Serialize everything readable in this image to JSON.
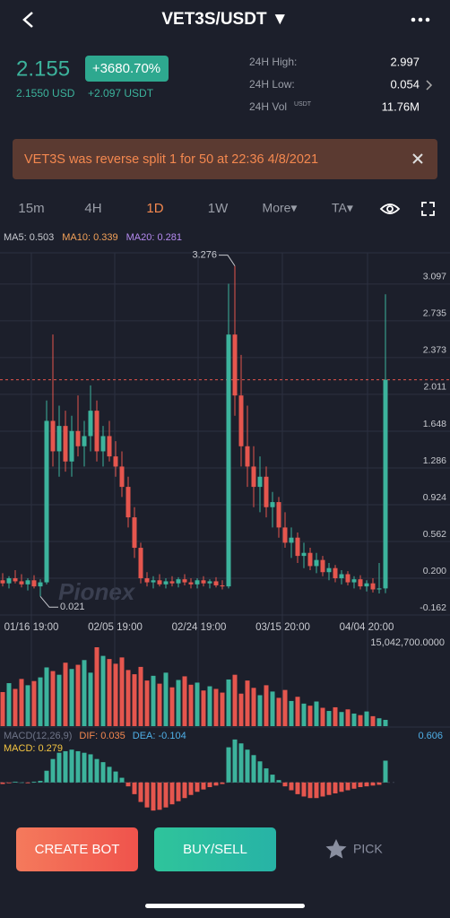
{
  "header": {
    "title": "VET3S/USDT ▼"
  },
  "price": {
    "last": "2.155",
    "change": "+3680.70%",
    "usd": "2.1550 USD",
    "delta": "+2.097 USDT"
  },
  "stats": [
    {
      "label": "24H High:",
      "value": "2.997"
    },
    {
      "label": "24H Low:",
      "value": "0.054"
    },
    {
      "label": "24H Vol",
      "sup": "USDT",
      "value": "11.76M"
    }
  ],
  "banner": "VET3S was reverse split 1 for 50 at 22:36 4/8/2021",
  "tabs": [
    "15m",
    "4H",
    "1D",
    "1W",
    "More▾",
    "TA▾"
  ],
  "ma": [
    "MA5: 0.503",
    "MA10: 0.339",
    "MA20: 0.281"
  ],
  "chart_data": {
    "type": "candlestick",
    "up_color": "#3cb39c",
    "down_color": "#e5564e",
    "ylim": [
      -0.197,
      3.405
    ],
    "yticks": [
      {
        "value": 3.097,
        "label": "3.097"
      },
      2.735,
      2.373,
      2.011,
      1.648,
      1.286,
      0.924,
      0.562,
      {
        "value": 0.2,
        "label": "0.200"
      },
      -0.162
    ],
    "x_labels": [
      "01/16 19:00",
      "02/05 19:00",
      "02/24 19:00",
      "03/15 20:00",
      "04/04 20:00"
    ],
    "annotations": [
      "3.276",
      "0.021"
    ],
    "grid": true,
    "candles": [
      [
        0.18,
        0.25,
        0.12,
        0.15
      ],
      [
        0.15,
        0.22,
        0.1,
        0.2
      ],
      [
        0.2,
        0.28,
        0.15,
        0.17
      ],
      [
        0.17,
        0.24,
        0.11,
        0.14
      ],
      [
        0.14,
        0.2,
        0.08,
        0.18
      ],
      [
        0.18,
        0.23,
        0.1,
        0.12
      ],
      [
        0.12,
        0.19,
        0.021,
        0.16
      ],
      [
        0.16,
        1.95,
        0.14,
        1.75
      ],
      [
        1.75,
        2.6,
        1.3,
        1.45
      ],
      [
        1.45,
        1.9,
        1.2,
        1.7
      ],
      [
        1.7,
        1.85,
        1.25,
        1.35
      ],
      [
        1.35,
        1.8,
        1.2,
        1.65
      ],
      [
        1.65,
        2.0,
        1.4,
        1.5
      ],
      [
        1.5,
        1.75,
        1.3,
        1.6
      ],
      [
        1.6,
        2.1,
        1.45,
        1.85
      ],
      [
        1.85,
        1.95,
        1.35,
        1.45
      ],
      [
        1.45,
        1.7,
        1.3,
        1.6
      ],
      [
        1.6,
        1.75,
        1.35,
        1.4
      ],
      [
        1.4,
        1.55,
        1.2,
        1.3
      ],
      [
        1.3,
        1.45,
        1.0,
        1.1
      ],
      [
        1.1,
        1.2,
        0.7,
        0.8
      ],
      [
        0.8,
        0.9,
        0.4,
        0.5
      ],
      [
        0.5,
        0.55,
        0.15,
        0.2
      ],
      [
        0.2,
        0.26,
        0.12,
        0.16
      ],
      [
        0.16,
        0.22,
        0.1,
        0.18
      ],
      [
        0.18,
        0.24,
        0.12,
        0.14
      ],
      [
        0.14,
        0.2,
        0.1,
        0.17
      ],
      [
        0.17,
        0.22,
        0.12,
        0.15
      ],
      [
        0.15,
        0.21,
        0.11,
        0.19
      ],
      [
        0.19,
        0.24,
        0.13,
        0.16
      ],
      [
        0.16,
        0.2,
        0.1,
        0.14
      ],
      [
        0.14,
        0.2,
        0.1,
        0.18
      ],
      [
        0.18,
        0.22,
        0.12,
        0.15
      ],
      [
        0.15,
        0.19,
        0.1,
        0.17
      ],
      [
        0.17,
        0.21,
        0.11,
        0.13
      ],
      [
        0.13,
        0.18,
        0.09,
        0.12
      ],
      [
        0.12,
        3.1,
        0.1,
        2.6
      ],
      [
        2.6,
        3.276,
        1.8,
        2.0
      ],
      [
        2.0,
        2.4,
        1.3,
        1.5
      ],
      [
        1.5,
        1.9,
        1.1,
        1.3
      ],
      [
        1.3,
        1.5,
        0.9,
        1.1
      ],
      [
        1.1,
        1.4,
        0.85,
        1.2
      ],
      [
        1.2,
        1.3,
        0.8,
        0.9
      ],
      [
        0.9,
        1.05,
        0.7,
        0.95
      ],
      [
        0.95,
        1.0,
        0.6,
        0.7
      ],
      [
        0.7,
        0.85,
        0.5,
        0.55
      ],
      [
        0.55,
        0.7,
        0.4,
        0.6
      ],
      [
        0.6,
        0.65,
        0.35,
        0.42
      ],
      [
        0.42,
        0.55,
        0.3,
        0.45
      ],
      [
        0.45,
        0.5,
        0.28,
        0.32
      ],
      [
        0.32,
        0.45,
        0.25,
        0.38
      ],
      [
        0.38,
        0.42,
        0.22,
        0.26
      ],
      [
        0.26,
        0.35,
        0.18,
        0.3
      ],
      [
        0.3,
        0.33,
        0.16,
        0.2
      ],
      [
        0.2,
        0.28,
        0.14,
        0.24
      ],
      [
        0.24,
        0.27,
        0.13,
        0.16
      ],
      [
        0.16,
        0.22,
        0.1,
        0.19
      ],
      [
        0.19,
        0.23,
        0.09,
        0.12
      ],
      [
        0.12,
        0.18,
        0.07,
        0.15
      ],
      [
        0.15,
        0.2,
        0.06,
        0.09
      ],
      [
        0.09,
        0.35,
        0.05,
        0.1
      ],
      [
        0.1,
        2.997,
        0.054,
        2.155
      ]
    ],
    "volume": [
      6500000,
      8200000,
      7100000,
      9000000,
      7800000,
      8600000,
      9300000,
      11200000,
      10500000,
      9800000,
      12100000,
      10900000,
      11700000,
      12600000,
      10200000,
      15042700,
      13400000,
      12800000,
      11900000,
      13100000,
      10700000,
      9900000,
      11300000,
      8700000,
      9600000,
      8100000,
      10200000,
      7400000,
      8800000,
      9500000,
      7900000,
      8300000,
      6800000,
      7600000,
      7100000,
      6400000,
      8900000,
      9800000,
      6200000,
      8700000,
      7300000,
      5900000,
      7800000,
      6600000,
      5400000,
      6900000,
      4800000,
      5600000,
      4300000,
      3900000,
      4700000,
      3500000,
      2900000,
      3600000,
      2700000,
      3200000,
      2400000,
      2100000,
      2800000,
      1900000,
      1500000,
      1200000
    ],
    "volume_ylim": [
      0,
      15042700
    ],
    "volume_ticks": [
      {
        "value": 15042700,
        "label": "15,042,700.0000"
      }
    ],
    "macd_labels": [
      "MACD(12,26,9)",
      "DIF: 0.035",
      "DEA: -0.104",
      "MACD: 0.279"
    ],
    "macd": [
      -0.02,
      -0.01,
      0.01,
      0.0,
      -0.01,
      0.01,
      0.02,
      0.15,
      0.3,
      0.38,
      0.4,
      0.42,
      0.4,
      0.38,
      0.36,
      0.3,
      0.26,
      0.2,
      0.14,
      0.06,
      -0.05,
      -0.15,
      -0.25,
      -0.32,
      -0.36,
      -0.35,
      -0.32,
      -0.28,
      -0.24,
      -0.2,
      -0.16,
      -0.12,
      -0.09,
      -0.06,
      -0.04,
      -0.02,
      0.45,
      0.55,
      0.5,
      0.42,
      0.35,
      0.27,
      0.18,
      0.1,
      0.03,
      -0.05,
      -0.1,
      -0.15,
      -0.18,
      -0.2,
      -0.2,
      -0.18,
      -0.16,
      -0.14,
      -0.12,
      -0.1,
      -0.08,
      -0.06,
      -0.05,
      -0.04,
      -0.03,
      0.279
    ],
    "macd_ylim": [
      -0.45,
      0.606
    ],
    "macd_ticks": [
      0.606
    ]
  },
  "watermark": "Pionex",
  "buttons": [
    "CREATE BOT",
    "BUY/SELL",
    "PICK"
  ]
}
